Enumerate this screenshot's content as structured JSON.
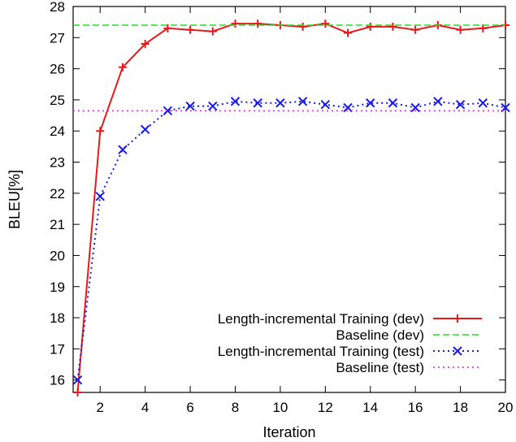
{
  "chart_data": {
    "type": "line",
    "xlabel": "Iteration",
    "ylabel": "BLEU[%]",
    "xlim": [
      0.8,
      20
    ],
    "ylim": [
      15.6,
      28
    ],
    "xticks": [
      2,
      4,
      6,
      8,
      10,
      12,
      14,
      16,
      18,
      20
    ],
    "yticks": [
      16,
      17,
      18,
      19,
      20,
      21,
      22,
      23,
      24,
      25,
      26,
      27,
      28
    ],
    "legend_position": "bottom-right",
    "grid": false,
    "series": [
      {
        "name": "Length-incremental Training (dev)",
        "color": "#e8191a",
        "style": "solid",
        "marker": "plus",
        "x": [
          1,
          2,
          3,
          4,
          5,
          6,
          7,
          8,
          9,
          10,
          11,
          12,
          13,
          14,
          15,
          16,
          17,
          18,
          19,
          20
        ],
        "values": [
          15.6,
          24.0,
          26.05,
          26.8,
          27.3,
          27.25,
          27.2,
          27.45,
          27.45,
          27.4,
          27.35,
          27.45,
          27.15,
          27.35,
          27.35,
          27.25,
          27.4,
          27.25,
          27.3,
          27.4
        ]
      },
      {
        "name": "Baseline (dev)",
        "color": "#22dd22",
        "style": "dashed",
        "marker": "none",
        "x": [
          0.8,
          20
        ],
        "values": [
          27.4,
          27.4
        ]
      },
      {
        "name": "Length-incremental Training (test)",
        "color": "#1a1aee",
        "style": "dotted",
        "marker": "cross",
        "x": [
          1,
          2,
          3,
          4,
          5,
          6,
          7,
          8,
          9,
          10,
          11,
          12,
          13,
          14,
          15,
          16,
          17,
          18,
          19,
          20
        ],
        "values": [
          16.0,
          21.9,
          23.4,
          24.05,
          24.65,
          24.8,
          24.8,
          24.95,
          24.9,
          24.9,
          24.95,
          24.85,
          24.75,
          24.9,
          24.9,
          24.75,
          24.95,
          24.85,
          24.9,
          24.75
        ]
      },
      {
        "name": "Baseline (test)",
        "color": "#dd22dd",
        "style": "dotted",
        "marker": "none",
        "x": [
          0.8,
          20
        ],
        "values": [
          24.65,
          24.65
        ]
      }
    ]
  }
}
